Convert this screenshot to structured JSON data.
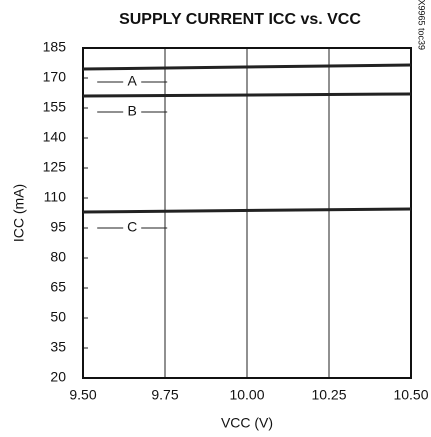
{
  "chart_data": {
    "type": "line",
    "title": "SUPPLY CURRENT ICC vs. VCC",
    "x_label": "VCC (V)",
    "y_label": "ICC (mA)",
    "side_note": "MAX9965 toc39",
    "x": [
      9.5,
      10.5
    ],
    "series": [
      {
        "name": "A",
        "color": "#222222",
        "values": [
          174.5,
          176.5
        ]
      },
      {
        "name": "B",
        "color": "#222222",
        "values": [
          161,
          162
        ]
      },
      {
        "name": "C",
        "color": "#222222",
        "values": [
          103,
          104.5
        ]
      }
    ],
    "annotations": [
      {
        "text": "A",
        "x": 9.65,
        "y": 168
      },
      {
        "text": "B",
        "x": 9.65,
        "y": 153
      },
      {
        "text": "C",
        "x": 9.65,
        "y": 95
      }
    ],
    "xlim": [
      9.5,
      10.5
    ],
    "xticks": [
      {
        "value": 9.5,
        "label": "9.50"
      },
      9.75,
      {
        "value": 10,
        "label": "10.00"
      },
      10.25,
      {
        "value": 10.5,
        "label": "10.50"
      }
    ],
    "ylim": [
      20,
      185
    ],
    "yticks": [
      20,
      35,
      50,
      65,
      80,
      95,
      110,
      125,
      140,
      155,
      170,
      185
    ],
    "grid": "x"
  }
}
